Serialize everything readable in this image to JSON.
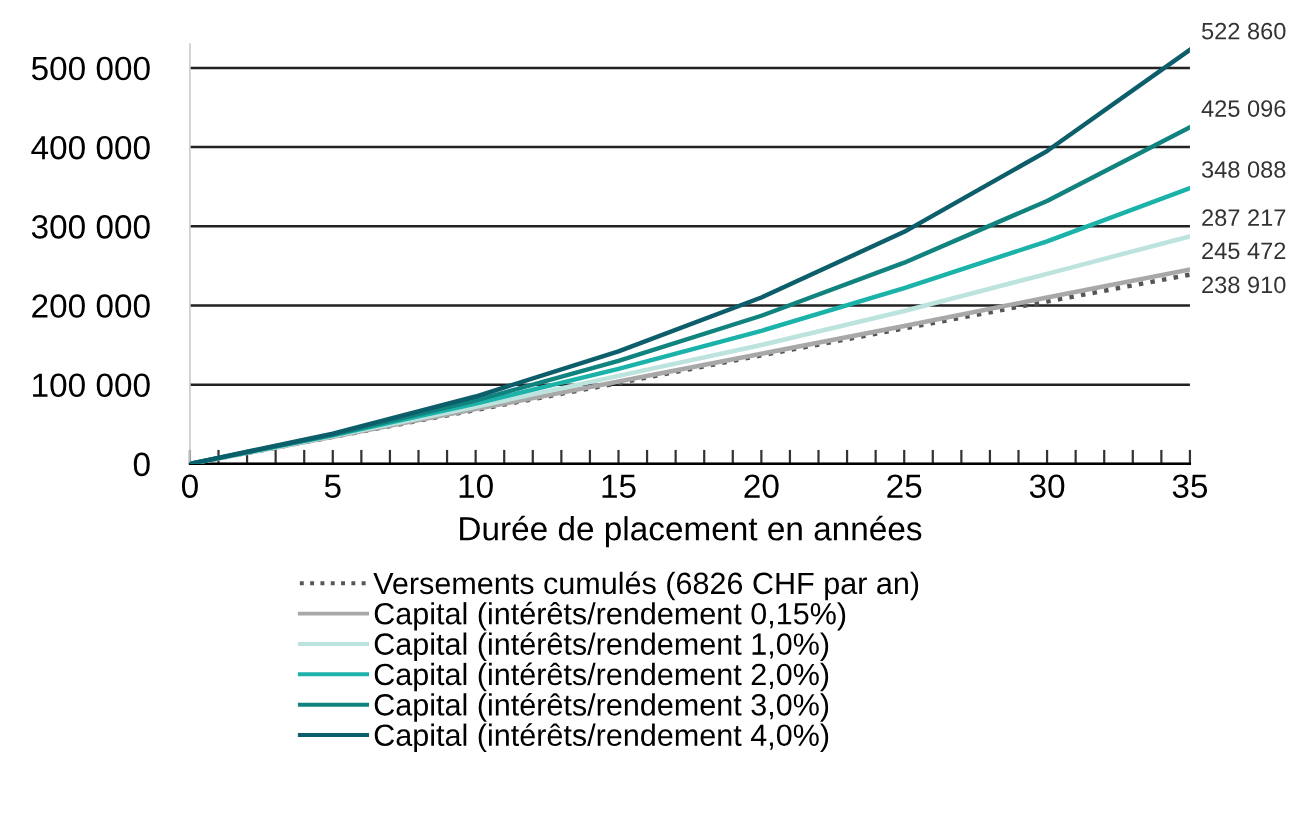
{
  "chart_data": {
    "type": "line",
    "xlabel": "Durée de placement en années",
    "x": [
      0,
      5,
      10,
      15,
      20,
      25,
      30,
      35
    ],
    "series": [
      {
        "name": "Versements cumulés (6826 CHF par an)",
        "color": "#555555",
        "line_style": "dotted",
        "values": [
          0,
          34000,
          68000,
          102000,
          137000,
          171000,
          205000,
          238910
        ],
        "value_labels": [
          null,
          null,
          null,
          null,
          null,
          null,
          null,
          "238 910"
        ]
      },
      {
        "name": "Capital (intérêts/rendement 0,15%)",
        "color": "#a8a8a8",
        "values": [
          0,
          34000,
          69000,
          104000,
          139000,
          174000,
          210000,
          245472
        ],
        "value_labels": [
          null,
          null,
          null,
          null,
          null,
          null,
          null,
          "245 472"
        ]
      },
      {
        "name": "Capital (intérêts/rendement 1,0%)",
        "color": "#bce3dd",
        "values": [
          0,
          35000,
          72000,
          111000,
          150000,
          193000,
          240000,
          287217
        ],
        "value_labels": [
          null,
          null,
          null,
          null,
          null,
          null,
          null,
          "287 217"
        ]
      },
      {
        "name": "Capital (intérêts/rendement 2,0%)",
        "color": "#1bb2aa",
        "values": [
          0,
          36000,
          76000,
          120000,
          168000,
          222000,
          281000,
          348088
        ],
        "value_labels": [
          null,
          null,
          null,
          null,
          null,
          null,
          null,
          "348 088"
        ]
      },
      {
        "name": "Capital (intérêts/rendement 3,0%)",
        "color": "#11837f",
        "values": [
          0,
          37000,
          80000,
          130000,
          187000,
          254000,
          332000,
          425096
        ],
        "value_labels": [
          null,
          null,
          null,
          null,
          null,
          null,
          null,
          "425 096"
        ]
      },
      {
        "name": "Capital (intérêts/rendement 4,0%)",
        "color": "#0c5e6a",
        "values": [
          0,
          38000,
          85000,
          142000,
          210000,
          293000,
          395000,
          522860
        ],
        "value_labels": [
          null,
          null,
          null,
          null,
          null,
          null,
          null,
          "522 860"
        ]
      }
    ],
    "xlim": [
      0,
      35
    ],
    "xticks": [
      0,
      {
        "value": 1,
        "label": null
      },
      {
        "value": 2,
        "label": null
      },
      {
        "value": 3,
        "label": null
      },
      {
        "value": 4,
        "label": null
      },
      5,
      {
        "value": 6,
        "label": null
      },
      {
        "value": 7,
        "label": null
      },
      {
        "value": 8,
        "label": null
      },
      {
        "value": 9,
        "label": null
      },
      10,
      {
        "value": 11,
        "label": null
      },
      {
        "value": 12,
        "label": null
      },
      {
        "value": 13,
        "label": null
      },
      {
        "value": 14,
        "label": null
      },
      15,
      {
        "value": 16,
        "label": null
      },
      {
        "value": 17,
        "label": null
      },
      {
        "value": 18,
        "label": null
      },
      {
        "value": 19,
        "label": null
      },
      20,
      {
        "value": 21,
        "label": null
      },
      {
        "value": 22,
        "label": null
      },
      {
        "value": 23,
        "label": null
      },
      {
        "value": 24,
        "label": null
      },
      25,
      {
        "value": 26,
        "label": null
      },
      {
        "value": 27,
        "label": null
      },
      {
        "value": 28,
        "label": null
      },
      {
        "value": 29,
        "label": null
      },
      30,
      {
        "value": 31,
        "label": null
      },
      {
        "value": 32,
        "label": null
      },
      {
        "value": 33,
        "label": null
      },
      {
        "value": 34,
        "label": null
      },
      35
    ],
    "ylim": [
      0,
      530000
    ],
    "yticks": [
      0,
      {
        "value": 100000,
        "label": "100 000"
      },
      {
        "value": 200000,
        "label": "200 000"
      },
      {
        "value": 300000,
        "label": "300 000"
      },
      {
        "value": 400000,
        "label": "400 000"
      },
      {
        "value": 500000,
        "label": "500 000"
      }
    ],
    "grid": "y",
    "legend": "bottom"
  }
}
